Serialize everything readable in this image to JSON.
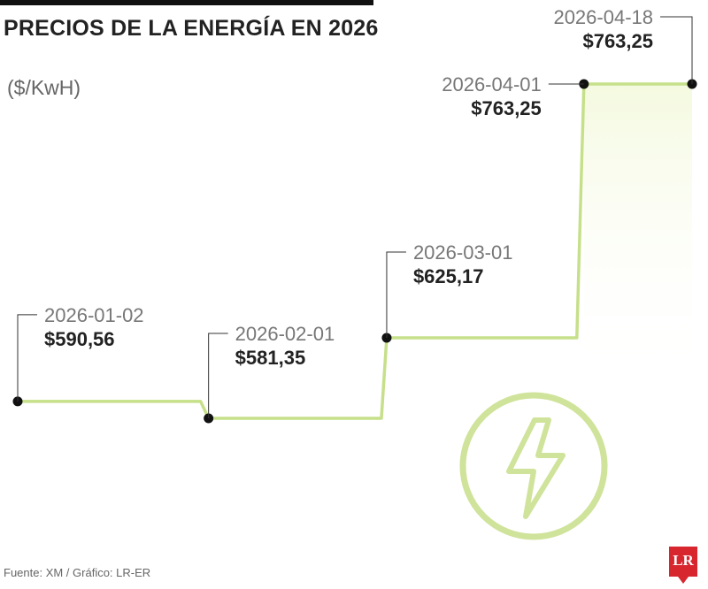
{
  "header": {
    "title": "PRECIOS DE LA ENERGÍA EN 2026",
    "unit": "($/KwH)"
  },
  "chart_data": {
    "type": "line",
    "step": true,
    "title": "PRECIOS DE LA ENERGÍA EN 2026",
    "ylabel": "($/KwH)",
    "points": [
      {
        "date": "2026-01-02",
        "value": 590.56,
        "label": "$590,56"
      },
      {
        "date": "2026-02-01",
        "value": 581.35,
        "label": "$581,35"
      },
      {
        "date": "2026-03-01",
        "value": 625.17,
        "label": "$625,17"
      },
      {
        "date": "2026-04-01",
        "value": 763.25,
        "label": "$763,25"
      },
      {
        "date": "2026-04-18",
        "value": 763.25,
        "label": "$763,25"
      }
    ],
    "line_color": "#c6e08a",
    "fill_color": "#f7fbe6",
    "marker_color": "#111111"
  },
  "decoration": {
    "icon": "lightning-bolt-icon",
    "icon_color": "#cfe39a"
  },
  "footer": {
    "source": "Fuente: XM / Gráfico: LR-ER",
    "logo": "LR",
    "logo_color": "#d8262f"
  }
}
